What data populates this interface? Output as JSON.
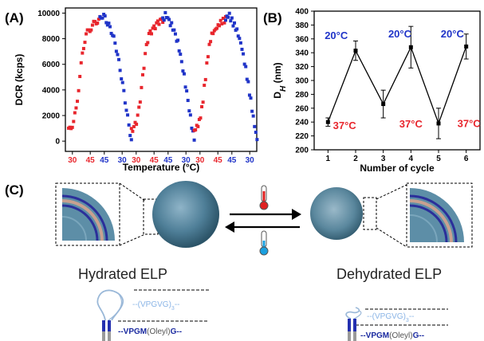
{
  "panels": {
    "a": {
      "label": "(A)"
    },
    "b": {
      "label": "(B)"
    },
    "c": {
      "label": "(C)"
    }
  },
  "colors": {
    "heat": "#e8262d",
    "cool": "#2034c8",
    "particle": "#4a7e98",
    "thermo_hot": "#e02020",
    "thermo_cold": "#1aa0e0",
    "seq_light": "#8ab4e6",
    "seq_dark": "#1a2aa0"
  },
  "chart_data": [
    {
      "type": "scatter",
      "panel": "A",
      "xlabel": "Temperature (°C)",
      "ylabel": "DCR (kcps)",
      "ylim": [
        -800,
        10400
      ],
      "y_ticks": [
        0,
        2000,
        4000,
        6000,
        8000,
        10000
      ],
      "x_tick_labels": [
        {
          "label": "30",
          "color": "heat"
        },
        {
          "label": "45",
          "color": "heat"
        },
        {
          "label": "45",
          "color": "cool"
        },
        {
          "label": "30",
          "color": "cool"
        },
        {
          "label": "30",
          "color": "heat"
        },
        {
          "label": "45",
          "color": "heat"
        },
        {
          "label": "45",
          "color": "cool"
        },
        {
          "label": "30",
          "color": "cool"
        },
        {
          "label": "30",
          "color": "heat"
        },
        {
          "label": "45",
          "color": "heat"
        },
        {
          "label": "45",
          "color": "cool"
        },
        {
          "label": "30",
          "color": "cool"
        }
      ],
      "cycles": 3,
      "series": [
        {
          "color": "heat",
          "shape": [
            [
              0,
              800
            ],
            [
              0.15,
              1400
            ],
            [
              0.25,
              2600
            ],
            [
              0.35,
              4800
            ],
            [
              0.45,
              7000
            ],
            [
              0.55,
              8300
            ],
            [
              0.7,
              8800
            ],
            [
              0.85,
              9300
            ],
            [
              1.0,
              9500
            ]
          ]
        },
        {
          "color": "cool",
          "shape": [
            [
              0,
              9500
            ],
            [
              0.1,
              9900
            ],
            [
              0.2,
              9400
            ],
            [
              0.35,
              8700
            ],
            [
              0.5,
              7500
            ],
            [
              0.65,
              5500
            ],
            [
              0.78,
              3500
            ],
            [
              0.9,
              1500
            ],
            [
              1.0,
              100
            ]
          ]
        }
      ]
    },
    {
      "type": "line",
      "panel": "B",
      "xlabel": "Number of cycle",
      "ylabel": "D",
      "ylabel_sub": "H",
      "ylabel_unit": " (nm)",
      "x": [
        1,
        2,
        3,
        4,
        5,
        6
      ],
      "values": [
        240,
        343,
        266,
        348,
        238,
        349
      ],
      "errors": [
        6,
        14,
        20,
        30,
        22,
        18
      ],
      "xlim": [
        0.5,
        6.5
      ],
      "ylim": [
        200,
        400
      ],
      "y_ticks": [
        200,
        220,
        240,
        260,
        280,
        300,
        320,
        340,
        360,
        380,
        400
      ],
      "x_ticks": [
        1,
        2,
        3,
        4,
        5,
        6
      ],
      "annotations": [
        {
          "text": "20°C",
          "color": "cool",
          "x": 1.3,
          "y": 360
        },
        {
          "text": "20°C",
          "color": "cool",
          "x": 3.6,
          "y": 362
        },
        {
          "text": "20°C",
          "color": "cool",
          "x": 5.5,
          "y": 362
        },
        {
          "text": "37°C",
          "color": "heat",
          "x": 1.6,
          "y": 230
        },
        {
          "text": "37°C",
          "color": "heat",
          "x": 4.0,
          "y": 232
        },
        {
          "text": "37°C",
          "color": "heat",
          "x": 6.1,
          "y": 233
        }
      ]
    }
  ],
  "illustration": {
    "left_caption": "Hydrated ELP",
    "right_caption": "Dehydrated ELP",
    "left_seq_top": "(VPGVG)",
    "left_seq_top_sub": "3",
    "left_seq_bottom_pre": "VPGM",
    "left_seq_bottom_mid": "(Oleyl)",
    "left_seq_bottom_post": "G",
    "right_seq_top": "(VPGVG)",
    "right_seq_top_sub": "3",
    "right_seq_bottom_pre": "VPGM",
    "right_seq_bottom_mid": "(Oleyl)",
    "right_seq_bottom_post": "G",
    "thermometer_hot": "thermometer-hot-icon",
    "thermometer_cold": "thermometer-cold-icon"
  }
}
